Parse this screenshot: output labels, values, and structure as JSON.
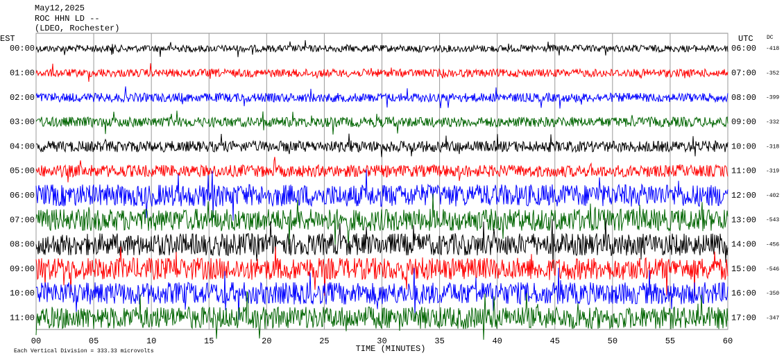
{
  "header": {
    "lines": [
      "May12,2025",
      "ROC HHN LD --",
      "(LDEO, Rochester)"
    ]
  },
  "left_label": "EST",
  "right_label": "UTC",
  "dc_label": "DC",
  "rows": [
    {
      "est": "00:00",
      "utc": "06:00",
      "dc": -418,
      "color": "#000000"
    },
    {
      "est": "01:00",
      "utc": "07:00",
      "dc": -352,
      "color": "#ff0000"
    },
    {
      "est": "02:00",
      "utc": "08:00",
      "dc": -399,
      "color": "#0000ff"
    },
    {
      "est": "03:00",
      "utc": "09:00",
      "dc": -332,
      "color": "#006400"
    },
    {
      "est": "04:00",
      "utc": "10:00",
      "dc": -318,
      "color": "#000000"
    },
    {
      "est": "05:00",
      "utc": "11:00",
      "dc": -319,
      "color": "#ff0000"
    },
    {
      "est": "06:00",
      "utc": "12:00",
      "dc": -402,
      "color": "#0000ff"
    },
    {
      "est": "07:00",
      "utc": "13:00",
      "dc": -543,
      "color": "#006400"
    },
    {
      "est": "08:00",
      "utc": "14:00",
      "dc": -456,
      "color": "#000000"
    },
    {
      "est": "09:00",
      "utc": "15:00",
      "dc": -546,
      "color": "#ff0000"
    },
    {
      "est": "10:00",
      "utc": "16:00",
      "dc": -350,
      "color": "#0000ff"
    },
    {
      "est": "11:00",
      "utc": "17:00",
      "dc": -347,
      "color": "#006400"
    }
  ],
  "x_axis": {
    "label": "TIME (MINUTES)",
    "lim": [
      0,
      60
    ],
    "ticks": [
      {
        "value": 0,
        "label": "00"
      },
      {
        "value": 5,
        "label": "05"
      },
      {
        "value": 10,
        "label": "10"
      },
      {
        "value": 15,
        "label": "15"
      },
      {
        "value": 20,
        "label": "20"
      },
      {
        "value": 25,
        "label": "25"
      },
      {
        "value": 30,
        "label": "30"
      },
      {
        "value": 35,
        "label": "35"
      },
      {
        "value": 40,
        "label": "40"
      },
      {
        "value": 45,
        "label": "45"
      },
      {
        "value": 50,
        "label": "50"
      },
      {
        "value": 55,
        "label": "55"
      },
      {
        "value": 60,
        "label": "60"
      }
    ]
  },
  "footer": "Each Vertical Division = 333.33 microvolts"
}
